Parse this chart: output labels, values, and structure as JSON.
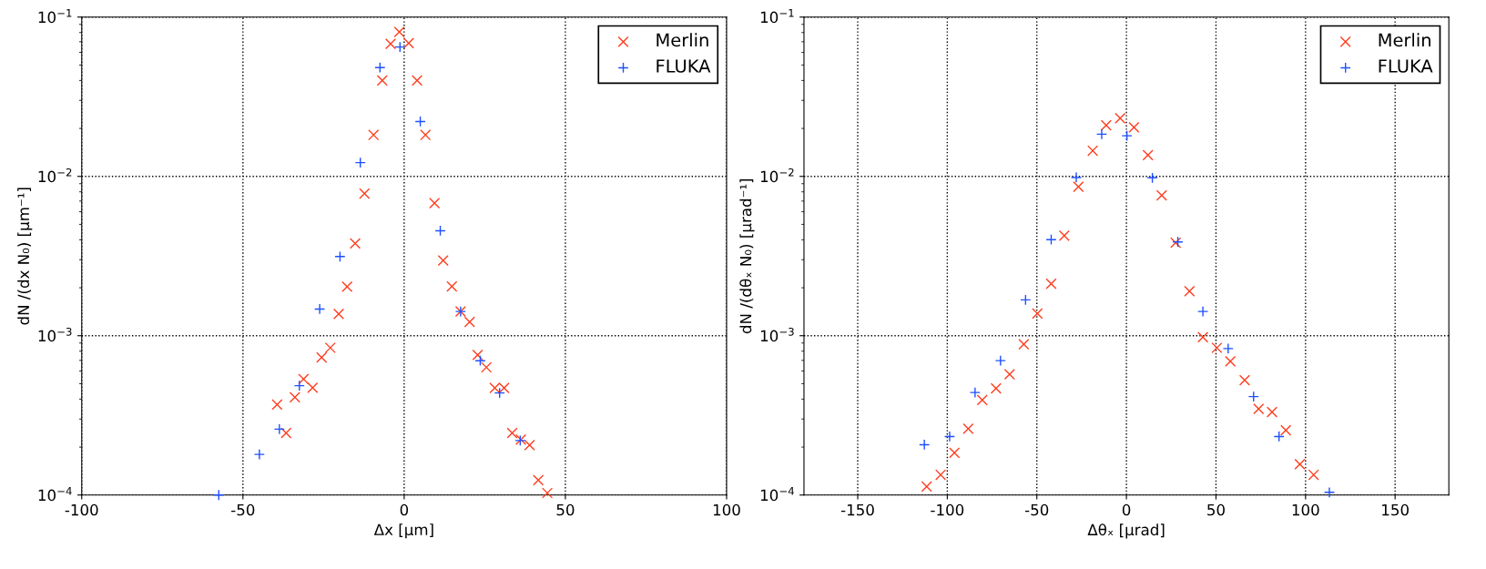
{
  "chart_data": [
    {
      "type": "scatter",
      "xlabel": "Δx [μm]",
      "ylabel": "dN /(dx N₀) [μm⁻¹]",
      "log": "y",
      "grid": true,
      "legend": "top right",
      "xlim": [
        -100,
        100
      ],
      "xticks": [
        -100,
        -50,
        0,
        50,
        100
      ],
      "ylim": [
        0.0001,
        0.1
      ],
      "yticks": [
        {
          "value": 0.0001,
          "label": "10$^{−4}$"
        },
        {
          "value": 0.001,
          "label": "10$^{−3}$"
        },
        {
          "value": 0.01,
          "label": "10$^{−2}$"
        },
        {
          "value": 0.1,
          "label": "10$^{−1}$"
        }
      ],
      "series": [
        {
          "name": "Merlin",
          "color": "#ff3c1e",
          "marker": "cross",
          "x": [
            -39.4,
            -36.6,
            -33.9,
            -31.2,
            -28.4,
            -25.6,
            -22.9,
            -20.3,
            -17.7,
            -15.2,
            -12.3,
            -9.5,
            -6.8,
            -4.2,
            -1.5,
            1.4,
            4.0,
            6.6,
            9.4,
            12.1,
            14.8,
            17.5,
            20.3,
            22.8,
            25.5,
            28.1,
            31.0,
            33.5,
            36.2,
            38.9,
            41.6,
            44.4
          ],
          "values": [
            0.00037,
            0.000245,
            0.000411,
            0.000535,
            0.000472,
            0.00073,
            0.00084,
            0.00137,
            0.00203,
            0.0038,
            0.0078,
            0.0182,
            0.04,
            0.068,
            0.0805,
            0.0687,
            0.04,
            0.0182,
            0.0068,
            0.00297,
            0.00204,
            0.00142,
            0.00122,
            0.000757,
            0.000633,
            0.00047,
            0.00047,
            0.000245,
            0.000223,
            0.000206,
            0.000124,
            0.000103
          ]
        },
        {
          "name": "FLUKA",
          "color": "#1e50ff",
          "marker": "plus",
          "x": [
            -57.5,
            -44.9,
            -38.7,
            -32.5,
            -26.2,
            -19.9,
            -13.6,
            -7.5,
            -1.3,
            5.0,
            11.2,
            17.5,
            23.6,
            29.6,
            36.0
          ],
          "values": [
            0.0001,
            0.00018,
            0.000259,
            0.000486,
            0.00147,
            0.00314,
            0.0122,
            0.0482,
            0.0649,
            0.0221,
            0.00456,
            0.00142,
            0.000697,
            0.000437,
            0.00022
          ]
        }
      ]
    },
    {
      "type": "scatter",
      "xlabel": "Δθₓ [μrad]",
      "ylabel": "dN /(dθₓ N₀) [μrad⁻¹]",
      "log": "y",
      "grid": true,
      "legend": "top right",
      "xlim": [
        -180,
        180
      ],
      "xticks": [
        -150,
        -100,
        -50,
        0,
        50,
        100,
        150
      ],
      "ylim": [
        0.0001,
        0.1
      ],
      "yticks": [
        {
          "value": 0.0001,
          "label": "10$^{−4}$"
        },
        {
          "value": 0.001,
          "label": "10$^{−3}$"
        },
        {
          "value": 0.01,
          "label": "10$^{−2}$"
        },
        {
          "value": 0.1,
          "label": "10$^{−1}$"
        }
      ],
      "series": [
        {
          "name": "Merlin",
          "color": "#ff3c1e",
          "marker": "cross",
          "x": [
            -111.5,
            -103.7,
            -96,
            -88.3,
            -80.5,
            -72.8,
            -65.2,
            -57.3,
            -49.7,
            -42,
            -34.7,
            -26.8,
            -18.8,
            -11.3,
            -3.5,
            4.2,
            12,
            19.7,
            27.5,
            35.2,
            42.7,
            50.5,
            58,
            66,
            73.8,
            81.3,
            89,
            96.8,
            104.5
          ],
          "values": [
            0.000113,
            0.000134,
            0.000184,
            0.000261,
            0.000395,
            0.000467,
            0.000573,
            0.000884,
            0.00138,
            0.00212,
            0.00425,
            0.0086,
            0.0145,
            0.0209,
            0.0232,
            0.0203,
            0.0136,
            0.0076,
            0.00383,
            0.0019,
            0.00098,
            0.00084,
            0.00069,
            0.000525,
            0.000347,
            0.000332,
            0.000255,
            0.000156,
            0.000134
          ]
        },
        {
          "name": "FLUKA",
          "color": "#1e50ff",
          "marker": "plus",
          "x": [
            -112.8,
            -98.7,
            -84.5,
            -70.3,
            -56.3,
            -42,
            -28,
            -13.8,
            0.3,
            14.5,
            28.7,
            42.7,
            56.8,
            71,
            85.2,
            113.3
          ],
          "values": [
            0.000207,
            0.000233,
            0.00044,
            0.000698,
            0.00168,
            0.00401,
            0.00984,
            0.0184,
            0.018,
            0.0098,
            0.00388,
            0.00142,
            0.00083,
            0.000415,
            0.000233,
            0.000104
          ]
        }
      ]
    }
  ]
}
